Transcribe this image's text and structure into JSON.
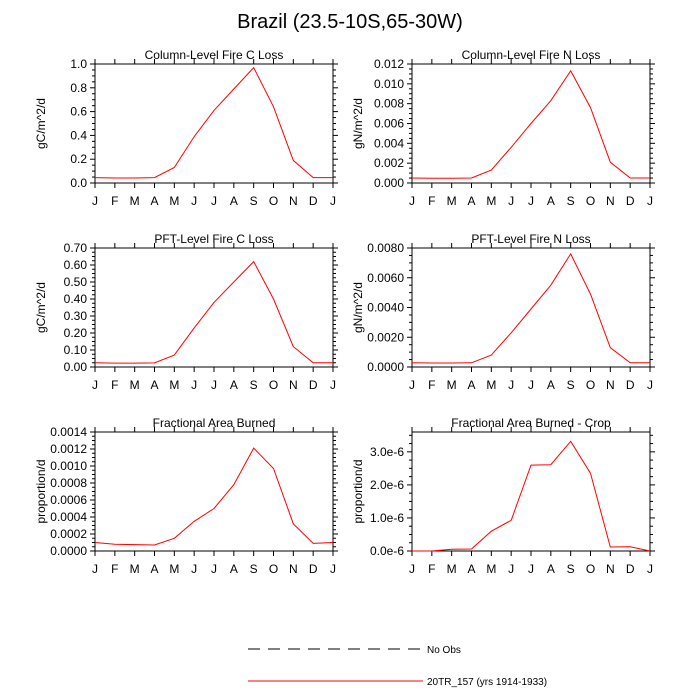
{
  "title": "Brazil (23.5-10S,65-30W)",
  "months": [
    "J",
    "F",
    "M",
    "A",
    "M",
    "J",
    "J",
    "A",
    "S",
    "O",
    "N",
    "D",
    "J"
  ],
  "series_color": "#ff0000",
  "legend": [
    {
      "label": "No Obs",
      "style": "dashed",
      "color": "#000000"
    },
    {
      "label": "20TR_157 (yrs 1914-1933)",
      "style": "solid",
      "color": "#ff0000"
    }
  ],
  "chart_data": [
    {
      "type": "line",
      "title": "Column-Level Fire C Loss",
      "ylabel": "gC/m^2/d",
      "ylim": [
        0,
        1.0
      ],
      "yticks": [
        "0.0",
        "0.2",
        "0.4",
        "0.6",
        "0.8",
        "1.0"
      ],
      "ytick_values": [
        0,
        0.2,
        0.4,
        0.6,
        0.8,
        1.0
      ],
      "x": [
        "J",
        "F",
        "M",
        "A",
        "M",
        "J",
        "J",
        "A",
        "S",
        "O",
        "N",
        "D",
        "J"
      ],
      "values": [
        0.045,
        0.042,
        0.042,
        0.045,
        0.13,
        0.39,
        0.61,
        0.79,
        0.97,
        0.64,
        0.19,
        0.045,
        0.045
      ]
    },
    {
      "type": "line",
      "title": "Column-Level Fire N Loss",
      "ylabel": "gN/m^2/d",
      "ylim": [
        0,
        0.012
      ],
      "yticks": [
        "0.000",
        "0.002",
        "0.004",
        "0.006",
        "0.008",
        "0.010",
        "0.012"
      ],
      "ytick_values": [
        0,
        0.002,
        0.004,
        0.006,
        0.008,
        0.01,
        0.012
      ],
      "x": [
        "J",
        "F",
        "M",
        "A",
        "M",
        "J",
        "J",
        "A",
        "S",
        "O",
        "N",
        "D",
        "J"
      ],
      "values": [
        0.0005,
        0.00048,
        0.00048,
        0.0005,
        0.0013,
        0.0036,
        0.006,
        0.0083,
        0.0113,
        0.0076,
        0.0021,
        0.0005,
        0.0005
      ]
    },
    {
      "type": "line",
      "title": "PFT-Level Fire C Loss",
      "ylabel": "gC/m^2/d",
      "ylim": [
        0,
        0.7
      ],
      "yticks": [
        "0.00",
        "0.10",
        "0.20",
        "0.30",
        "0.40",
        "0.50",
        "0.60",
        "0.70"
      ],
      "ytick_values": [
        0,
        0.1,
        0.2,
        0.3,
        0.4,
        0.5,
        0.6,
        0.7
      ],
      "x": [
        "J",
        "F",
        "M",
        "A",
        "M",
        "J",
        "J",
        "A",
        "S",
        "O",
        "N",
        "D",
        "J"
      ],
      "values": [
        0.025,
        0.023,
        0.023,
        0.024,
        0.07,
        0.23,
        0.38,
        0.5,
        0.62,
        0.4,
        0.12,
        0.025,
        0.025
      ]
    },
    {
      "type": "line",
      "title": "PFT-Level Fire N Loss",
      "ylabel": "gN/m^2/d",
      "ylim": [
        0,
        0.008
      ],
      "yticks": [
        "0.0000",
        "0.0020",
        "0.0040",
        "0.0060",
        "0.0080"
      ],
      "ytick_values": [
        0,
        0.002,
        0.004,
        0.006,
        0.008
      ],
      "x": [
        "J",
        "F",
        "M",
        "A",
        "M",
        "J",
        "J",
        "A",
        "S",
        "O",
        "N",
        "D",
        "J"
      ],
      "values": [
        0.00028,
        0.00027,
        0.00027,
        0.00028,
        0.0008,
        0.0023,
        0.0039,
        0.0055,
        0.0076,
        0.0049,
        0.0013,
        0.00028,
        0.00028
      ]
    },
    {
      "type": "line",
      "title": "Fractional Area Burned",
      "ylabel": "proportion/d",
      "ylim": [
        0,
        0.0014
      ],
      "yticks": [
        "0.0000",
        "0.0002",
        "0.0004",
        "0.0006",
        "0.0008",
        "0.0010",
        "0.0012",
        "0.0014"
      ],
      "ytick_values": [
        0,
        0.0002,
        0.0004,
        0.0006,
        0.0008,
        0.001,
        0.0012,
        0.0014
      ],
      "x": [
        "J",
        "F",
        "M",
        "A",
        "M",
        "J",
        "J",
        "A",
        "S",
        "O",
        "N",
        "D",
        "J"
      ],
      "values": [
        0.0001,
        8e-05,
        7.5e-05,
        7e-05,
        0.00015,
        0.00035,
        0.0005,
        0.00078,
        0.00121,
        0.00097,
        0.00032,
        9e-05,
        0.0001
      ]
    },
    {
      "type": "line",
      "title": "Fractional Area Burned - Crop",
      "ylabel": "proportion/d",
      "ylim": [
        0,
        3.6e-06
      ],
      "yticks": [
        "0.0e-6",
        "1.0e-6",
        "2.0e-6",
        "3.0e-6"
      ],
      "ytick_values": [
        0,
        1e-06,
        2e-06,
        3e-06
      ],
      "x": [
        "J",
        "F",
        "M",
        "A",
        "M",
        "J",
        "J",
        "A",
        "S",
        "O",
        "N",
        "D",
        "J"
      ],
      "values": [
        0,
        0,
        5e-08,
        6e-08,
        6e-07,
        9.3e-07,
        2.6e-06,
        2.61e-06,
        3.32e-06,
        2.35e-06,
        1.2e-07,
        1.3e-07,
        0
      ]
    }
  ]
}
